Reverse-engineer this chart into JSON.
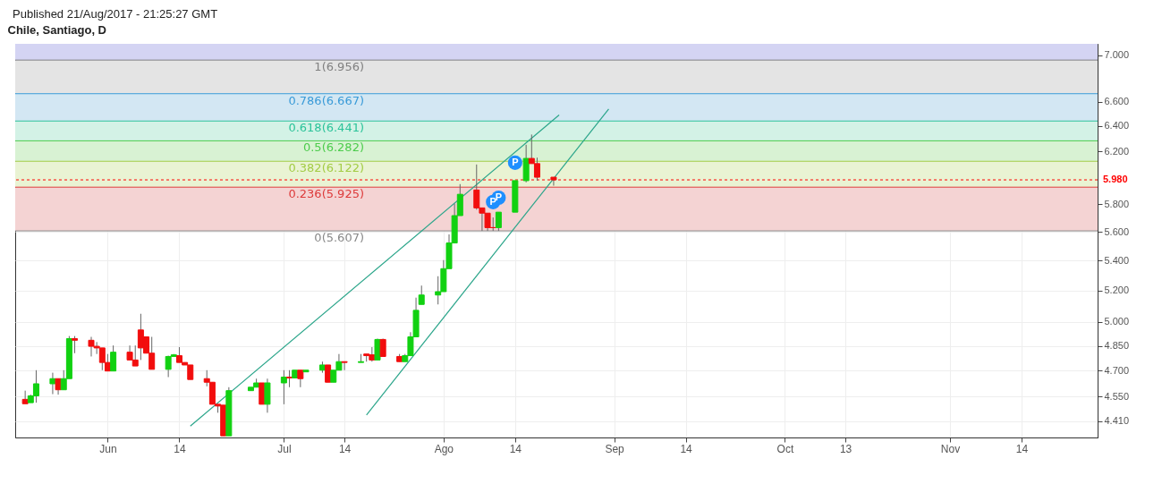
{
  "chart_data": {
    "type": "candlestick",
    "title": "Chile, Santiago, D",
    "annotations": [
      "Published 21/Aug/2017 - 21:25:27 GMT",
      {
        "text": "P",
        "x": "2017-08-10",
        "y": 5.815
      },
      {
        "text": "P",
        "x": "2017-08-11",
        "y": 5.847
      },
      {
        "text": "P",
        "x": "2017-08-14",
        "y": 6.111
      }
    ],
    "x": [
      "2017-05-17",
      "2017-05-18",
      "2017-05-19",
      "2017-05-22",
      "2017-05-23",
      "2017-05-24",
      "2017-05-25",
      "2017-05-26",
      "2017-05-29",
      "2017-05-30",
      "2017-05-31",
      "2017-06-01",
      "2017-06-02",
      "2017-06-05",
      "2017-06-06",
      "2017-06-07",
      "2017-06-08",
      "2017-06-09",
      "2017-06-12",
      "2017-06-13",
      "2017-06-14",
      "2017-06-15",
      "2017-06-16",
      "2017-06-19",
      "2017-06-20",
      "2017-06-21",
      "2017-06-22",
      "2017-06-23",
      "2017-06-27",
      "2017-06-28",
      "2017-06-29",
      "2017-06-30",
      "2017-07-03",
      "2017-07-04",
      "2017-07-05",
      "2017-07-06",
      "2017-07-07",
      "2017-07-10",
      "2017-07-11",
      "2017-07-12",
      "2017-07-13",
      "2017-07-14",
      "2017-07-17",
      "2017-07-18",
      "2017-07-19",
      "2017-07-20",
      "2017-07-21",
      "2017-07-24",
      "2017-07-25",
      "2017-07-26",
      "2017-07-27",
      "2017-07-28",
      "2017-07-31",
      "2017-08-01",
      "2017-08-02",
      "2017-08-03",
      "2017-08-04",
      "2017-08-07",
      "2017-08-08",
      "2017-08-09",
      "2017-08-10",
      "2017-08-11",
      "2017-08-14",
      "2017-08-16",
      "2017-08-17",
      "2017-08-18",
      "2017-08-21"
    ],
    "ohlc": [
      [
        4.533,
        4.583,
        4.508,
        4.508
      ],
      [
        4.514,
        4.56,
        4.514,
        4.553
      ],
      [
        4.553,
        4.703,
        4.514,
        4.623
      ],
      [
        4.623,
        4.688,
        4.563,
        4.653
      ],
      [
        4.653,
        4.653,
        4.56,
        4.588
      ],
      [
        4.588,
        4.703,
        4.588,
        4.653
      ],
      [
        4.653,
        4.91,
        4.653,
        4.894
      ],
      [
        4.894,
        4.91,
        4.805,
        4.884
      ],
      [
        4.884,
        4.905,
        4.785,
        4.847
      ],
      [
        4.847,
        4.873,
        4.8,
        4.837
      ],
      [
        4.837,
        4.837,
        4.703,
        4.749
      ],
      [
        4.749,
        4.8,
        4.698,
        4.698
      ],
      [
        4.698,
        4.852,
        4.698,
        4.811
      ],
      [
        4.811,
        4.852,
        4.764,
        4.764
      ],
      [
        4.764,
        4.852,
        4.728,
        4.728
      ],
      [
        4.948,
        5.05,
        4.764,
        4.837
      ],
      [
        4.905,
        4.905,
        4.805,
        4.805
      ],
      [
        4.805,
        4.905,
        4.708,
        4.708
      ],
      [
        4.708,
        4.79,
        4.662,
        4.785
      ],
      [
        4.785,
        4.8,
        4.785,
        4.795
      ],
      [
        4.79,
        4.842,
        4.749,
        4.749
      ],
      [
        4.749,
        4.749,
        4.734,
        4.734
      ],
      [
        4.734,
        4.734,
        4.648,
        4.648
      ],
      [
        4.653,
        4.703,
        4.608,
        4.632
      ],
      [
        4.632,
        4.632,
        4.505,
        4.505
      ],
      [
        4.505,
        4.505,
        4.457,
        4.495
      ],
      [
        4.5,
        4.5,
        4.329,
        4.329
      ],
      [
        4.329,
        4.603,
        4.329,
        4.583
      ],
      [
        4.583,
        4.603,
        4.583,
        4.603
      ],
      [
        4.603,
        4.653,
        4.603,
        4.628
      ],
      [
        4.628,
        4.628,
        4.505,
        4.505
      ],
      [
        4.505,
        4.653,
        4.457,
        4.628
      ],
      [
        4.628,
        4.703,
        4.505,
        4.662
      ],
      [
        4.662,
        4.703,
        4.603,
        4.657
      ],
      [
        4.657,
        4.703,
        4.657,
        4.703
      ],
      [
        4.703,
        4.703,
        4.603,
        4.653
      ],
      [
        4.693,
        4.703,
        4.693,
        4.703
      ],
      [
        4.703,
        4.754,
        4.688,
        4.734
      ],
      [
        4.734,
        4.734,
        4.632,
        4.632
      ],
      [
        4.632,
        4.703,
        4.632,
        4.703
      ],
      [
        4.703,
        4.8,
        4.703,
        4.754
      ],
      [
        4.754,
        4.754,
        4.703,
        4.749
      ],
      [
        4.749,
        4.8,
        4.749,
        4.754
      ],
      [
        4.8,
        4.8,
        4.754,
        4.79
      ],
      [
        4.795,
        4.842,
        4.754,
        4.764
      ],
      [
        4.764,
        4.894,
        4.764,
        4.889
      ],
      [
        4.889,
        4.894,
        4.785,
        4.785
      ],
      [
        4.785,
        4.8,
        4.754,
        4.754
      ],
      [
        4.754,
        4.8,
        4.754,
        4.79
      ],
      [
        4.79,
        4.934,
        4.79,
        4.905
      ],
      [
        4.905,
        5.154,
        4.905,
        5.072
      ],
      [
        5.11,
        5.233,
        5.11,
        5.171
      ],
      [
        5.171,
        5.295,
        5.11,
        5.193
      ],
      [
        5.193,
        5.404,
        5.193,
        5.346
      ],
      [
        5.346,
        5.582,
        5.346,
        5.522
      ],
      [
        5.522,
        5.803,
        5.522,
        5.716
      ],
      [
        5.716,
        5.948,
        5.716,
        5.872
      ],
      [
        5.904,
        6.097,
        5.759,
        5.772
      ],
      [
        5.772,
        5.772,
        5.607,
        5.734
      ],
      [
        5.734,
        5.734,
        5.607,
        5.63
      ],
      [
        5.63,
        5.703,
        5.607,
        5.63
      ],
      [
        5.63,
        5.741,
        5.607,
        5.741
      ],
      [
        5.741,
        5.974,
        5.741,
        5.974
      ],
      [
        5.974,
        6.251,
        5.961,
        6.144
      ],
      [
        6.144,
        6.332,
        6.104,
        6.104
      ],
      [
        6.104,
        6.15,
        5.974,
        6.0
      ],
      [
        6.0,
        6.0,
        5.936,
        5.98
      ]
    ],
    "colors": [
      "#f20d0d",
      "#11d111",
      "#11d111",
      "#11d111",
      "#f20d0d",
      "#11d111",
      "#11d111",
      "#f20d0d",
      "#f20d0d",
      "#f20d0d",
      "#f20d0d",
      "#f20d0d",
      "#11d111",
      "#f20d0d",
      "#f20d0d",
      "#f20d0d",
      "#f20d0d",
      "#f20d0d",
      "#11d111",
      "#11d111",
      "#f20d0d",
      "#f20d0d",
      "#f20d0d",
      "#f20d0d",
      "#f20d0d",
      "#f20d0d",
      "#f20d0d",
      "#11d111",
      "#11d111",
      "#11d111",
      "#f20d0d",
      "#11d111",
      "#11d111",
      "#f20d0d",
      "#11d111",
      "#f20d0d",
      "#11d111",
      "#11d111",
      "#f20d0d",
      "#11d111",
      "#11d111",
      "#f20d0d",
      "#11d111",
      "#f20d0d",
      "#f20d0d",
      "#11d111",
      "#f20d0d",
      "#f20d0d",
      "#11d111",
      "#11d111",
      "#11d111",
      "#11d111",
      "#11d111",
      "#11d111",
      "#11d111",
      "#11d111",
      "#11d111",
      "#f20d0d",
      "#f20d0d",
      "#f20d0d",
      "#f20d0d",
      "#11d111",
      "#11d111",
      "#11d111",
      "#f20d0d",
      "#f20d0d",
      "#f20d0d"
    ],
    "series": [
      {
        "type": "line",
        "color": "#2aa58a",
        "x": [
          "2017-06-16",
          "2017-08-22"
        ],
        "values": [
          4.383,
          6.49
        ]
      },
      {
        "type": "line",
        "color": "#2aa58a",
        "x": [
          "2017-07-18",
          "2017-08-31"
        ],
        "values": [
          4.444,
          6.54
        ]
      }
    ],
    "bands": [
      {
        "axis": "y",
        "from": 5.607,
        "to": 5.925,
        "color": "#f4d3d3"
      },
      {
        "axis": "y",
        "from": 5.925,
        "to": 6.122,
        "color": "#e9f3d3"
      },
      {
        "axis": "y",
        "from": 6.122,
        "to": 6.282,
        "color": "#d8f2d3"
      },
      {
        "axis": "y",
        "from": 6.282,
        "to": 6.441,
        "color": "#d3f2e6"
      },
      {
        "axis": "y",
        "from": 6.441,
        "to": 6.667,
        "color": "#d3e7f3"
      },
      {
        "axis": "y",
        "from": 6.667,
        "to": 6.956,
        "color": "#e4e4e4"
      },
      {
        "axis": "y",
        "from": 6.956,
        "to": 7.1,
        "color": "#d4d4f3"
      }
    ],
    "ref_lines": [
      {
        "axis": "y",
        "value": 6.956,
        "label": "1(6.956)",
        "color": "#808080"
      },
      {
        "axis": "y",
        "value": 6.667,
        "label": "0.786(6.667)",
        "color": "#3a9bd8"
      },
      {
        "axis": "y",
        "value": 6.441,
        "label": "0.618(6.441)",
        "color": "#2bc39a"
      },
      {
        "axis": "y",
        "value": 6.282,
        "label": "0.5(6.282)",
        "color": "#4ccc4c"
      },
      {
        "axis": "y",
        "value": 6.122,
        "label": "0.382(6.122)",
        "color": "#a3cc45"
      },
      {
        "axis": "y",
        "value": 5.925,
        "label": "0.236(5.925)",
        "color": "#dd3b3b"
      },
      {
        "axis": "y",
        "value": 5.607,
        "label": "0(5.607)",
        "color": "#888888"
      },
      {
        "axis": "y",
        "value": 5.98,
        "label": "5.980",
        "color": "#ff0000",
        "line_style": "dashed"
      }
    ],
    "xlim": [
      "2017-05-16",
      "2017-11-27"
    ],
    "xticks": [
      {
        "value": "2017-06-01",
        "label": "Jun"
      },
      {
        "value": "2017-06-14",
        "label": "14"
      },
      {
        "value": "2017-07-03",
        "label": "Jul"
      },
      {
        "value": "2017-07-14",
        "label": "14"
      },
      {
        "value": "2017-08-01",
        "label": "Ago"
      },
      {
        "value": "2017-08-14",
        "label": "14"
      },
      {
        "value": "2017-09-01",
        "label": "Sep"
      },
      {
        "value": "2017-09-14",
        "label": "14"
      },
      {
        "value": "2017-10-02",
        "label": "Oct"
      },
      {
        "value": "2017-10-13",
        "label": "13"
      },
      {
        "value": "2017-11-01",
        "label": "Nov"
      },
      {
        "value": "2017-11-14",
        "label": "14"
      }
    ],
    "ylim": [
      4.32,
      7.1
    ],
    "yticks": [
      {
        "value": 4.41,
        "label": "4.410"
      },
      {
        "value": 4.55,
        "label": "4.550"
      },
      {
        "value": 4.7,
        "label": "4.700"
      },
      {
        "value": 4.85,
        "label": "4.850"
      },
      {
        "value": 5,
        "label": "5.000"
      },
      {
        "value": 5.2,
        "label": "5.200"
      },
      {
        "value": 5.4,
        "label": "5.400"
      },
      {
        "value": 5.6,
        "label": "5.600"
      },
      {
        "value": 5.8,
        "label": "5.800"
      },
      {
        "value": 6.2,
        "label": "6.200"
      },
      {
        "value": 6.4,
        "label": "6.400"
      },
      {
        "value": 6.6,
        "label": "6.600"
      },
      {
        "value": 7,
        "label": "7.000"
      }
    ],
    "log": true,
    "grid": true
  }
}
